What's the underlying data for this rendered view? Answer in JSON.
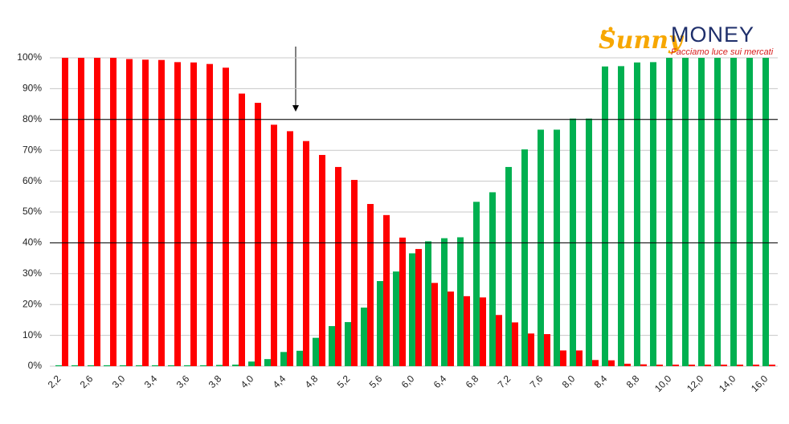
{
  "chart_data": {
    "type": "bar",
    "logo": {
      "brand": "Sunny",
      "name": "MONEY",
      "tagline": "Facciamo luce sui mercati"
    },
    "categories": [
      "2,2",
      null,
      "2,6",
      null,
      "3,0",
      null,
      "3,4",
      null,
      "3,6",
      null,
      "3,8",
      null,
      "4,0",
      null,
      "4,4",
      null,
      "4,8",
      null,
      "5,2",
      null,
      "5,6",
      null,
      "6,0",
      null,
      "6,4",
      null,
      "6,8",
      null,
      "7,2",
      null,
      "7,6",
      null,
      "8,0",
      null,
      "8,4",
      null,
      "8,8",
      null,
      "10,0",
      null,
      "12,0",
      null,
      "14,0",
      null,
      "16,0"
    ],
    "series": [
      {
        "color": "#00b050",
        "values": [
          0.3,
          0.3,
          0.3,
          0.3,
          0.3,
          0.3,
          0.3,
          0.3,
          0.3,
          0.3,
          0.4,
          0.5,
          1.5,
          2.3,
          4.6,
          5,
          9.2,
          13,
          14.3,
          19,
          27.6,
          30.7,
          36.6,
          40.5,
          41.5,
          41.8,
          53.3,
          56.4,
          64.6,
          70.3,
          76.7,
          76.7,
          80.3,
          80.3,
          97.2,
          97.3,
          98.5,
          98.6,
          100,
          100,
          100,
          100,
          100,
          100,
          100
        ]
      },
      {
        "color": "#ff0000",
        "values": [
          100,
          100,
          100,
          100,
          99.6,
          99.4,
          99.3,
          98.6,
          98.5,
          98,
          96.8,
          88.4,
          85.4,
          78.3,
          76.2,
          73,
          68.5,
          64.6,
          60.4,
          52.6,
          49,
          41.7,
          38,
          27,
          24.2,
          22.7,
          22.3,
          16.6,
          14.2,
          10.6,
          10.4,
          5.1,
          5.1,
          2,
          1.9,
          0.8,
          0.6,
          0.5,
          0.5,
          0.5,
          0.5,
          0.5,
          0.5,
          0.5,
          0.5
        ]
      }
    ],
    "hlines": [
      80,
      40
    ],
    "ylim": [
      0,
      100
    ],
    "yticks": [
      {
        "value": 0,
        "label": "0%"
      },
      {
        "value": 10,
        "label": "10%"
      },
      {
        "value": 20,
        "label": "20%"
      },
      {
        "value": 30,
        "label": "30%"
      },
      {
        "value": 40,
        "label": "40%"
      },
      {
        "value": 50,
        "label": "50%"
      },
      {
        "value": 60,
        "label": "60%"
      },
      {
        "value": 70,
        "label": "70%"
      },
      {
        "value": 80,
        "label": "80%"
      },
      {
        "value": 90,
        "label": "90%"
      },
      {
        "value": 100,
        "label": "100%"
      }
    ],
    "grid": true
  }
}
